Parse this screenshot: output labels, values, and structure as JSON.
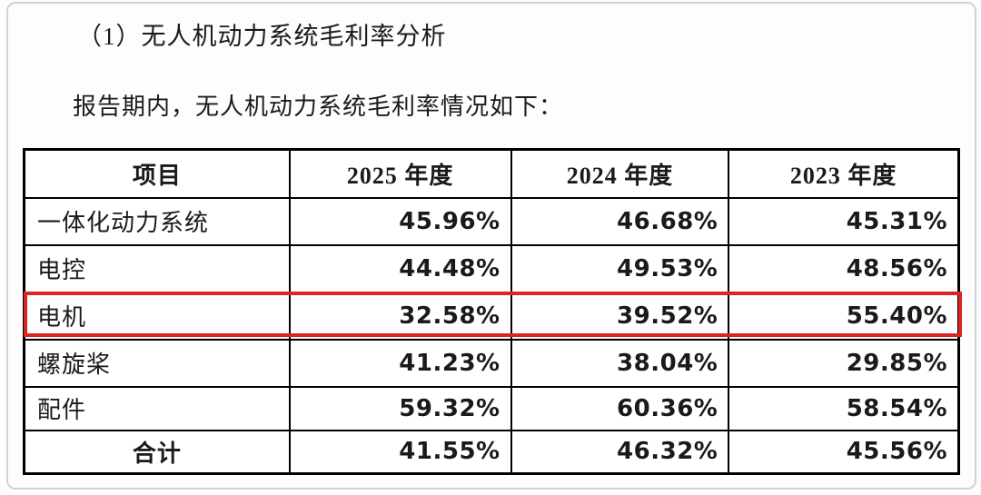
{
  "document": {
    "heading": "（1）无人机动力系统毛利率分析",
    "intro": "报告期内，无人机动力系统毛利率情况如下："
  },
  "table": {
    "columns": [
      "项目",
      "2025 年度",
      "2024 年度",
      "2023 年度"
    ],
    "rows": [
      {
        "label": "一体化动力系统",
        "values": [
          "45.96%",
          "46.68%",
          "45.31%"
        ],
        "highlight": false
      },
      {
        "label": "电控",
        "values": [
          "44.48%",
          "49.53%",
          "48.56%"
        ],
        "highlight": false
      },
      {
        "label": "电机",
        "values": [
          "32.58%",
          "39.52%",
          "55.40%"
        ],
        "highlight": true
      },
      {
        "label": "螺旋桨",
        "values": [
          "41.23%",
          "38.04%",
          "29.85%"
        ],
        "highlight": false
      },
      {
        "label": "配件",
        "values": [
          "59.32%",
          "60.36%",
          "58.54%"
        ],
        "highlight": false
      }
    ],
    "total_row": {
      "label": "合计",
      "values": [
        "41.55%",
        "46.32%",
        "45.56%"
      ]
    }
  },
  "colors": {
    "highlight_border": "#dd2424",
    "table_border": "#000000",
    "frame_border": "#d2d2d2"
  }
}
